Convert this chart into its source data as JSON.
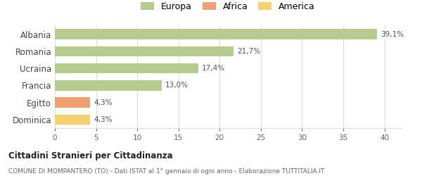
{
  "categories": [
    "Albania",
    "Romania",
    "Ucraina",
    "Francia",
    "Egitto",
    "Dominica"
  ],
  "values": [
    39.1,
    21.7,
    17.4,
    13.0,
    4.3,
    4.3
  ],
  "labels": [
    "39,1%",
    "21,7%",
    "17,4%",
    "13,0%",
    "4,3%",
    "4,3%"
  ],
  "bar_colors": [
    "#b5cc8e",
    "#b5cc8e",
    "#b5cc8e",
    "#b5cc8e",
    "#f0a070",
    "#f5d06e"
  ],
  "legend_items": [
    {
      "label": "Europa",
      "color": "#b5cc8e"
    },
    {
      "label": "Africa",
      "color": "#f0a070"
    },
    {
      "label": "America",
      "color": "#f5d06e"
    }
  ],
  "xlim": [
    0,
    42
  ],
  "xticks": [
    0,
    5,
    10,
    15,
    20,
    25,
    30,
    35,
    40
  ],
  "title": "Cittadini Stranieri per Cittadinanza",
  "subtitle": "COMUNE DI MOMPANTERO (TO) - Dati ISTAT al 1° gennaio di ogni anno - Elaborazione TUTTITALIA.IT",
  "background_color": "#ffffff",
  "grid_color": "#dddddd",
  "bar_height": 0.6
}
